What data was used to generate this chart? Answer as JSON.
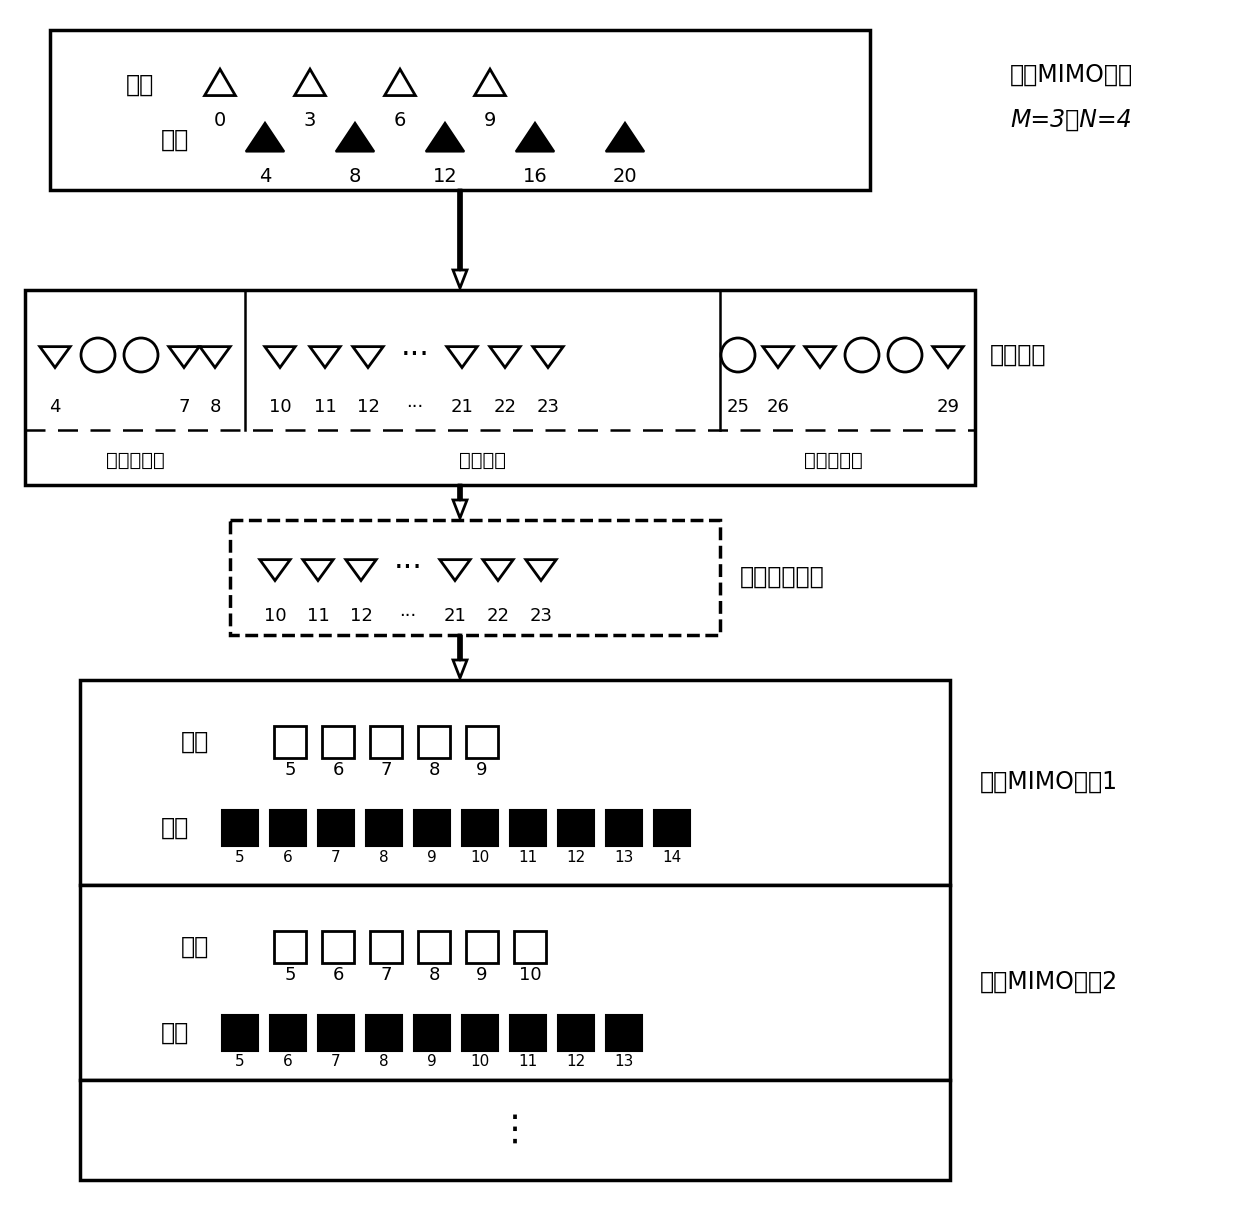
{
  "bg_color": "#ffffff",
  "tx_label": "发射",
  "rx_label": "接收",
  "coprime_line1": "互质MIMO阵列",
  "coprime_line2": "M=3，N=4",
  "sum_coarray_label": "和协同阵",
  "ref_coarray_label": "参考和协同阵",
  "virtual_mimo1_label": "虚拟MIMO阵列1",
  "virtual_mimo2_label": "虚拟MIMO阵列2",
  "nonuniform_left_label": "非均匀部分",
  "uniform_label": "均匀部分",
  "nonuniform_right_label": "非均匀部分",
  "tx_positions": [
    "0",
    "3",
    "6",
    "9"
  ],
  "rx_positions": [
    "4",
    "8",
    "12",
    "16",
    "20"
  ],
  "virtual1_tx": [
    "5",
    "6",
    "7",
    "8",
    "9"
  ],
  "virtual1_rx": [
    "5",
    "6",
    "7",
    "8",
    "9",
    "10",
    "11",
    "12",
    "13",
    "14"
  ],
  "virtual2_tx": [
    "5",
    "6",
    "7",
    "8",
    "9",
    "10"
  ],
  "virtual2_rx": [
    "5",
    "6",
    "7",
    "8",
    "9",
    "10",
    "11",
    "12",
    "13"
  ]
}
